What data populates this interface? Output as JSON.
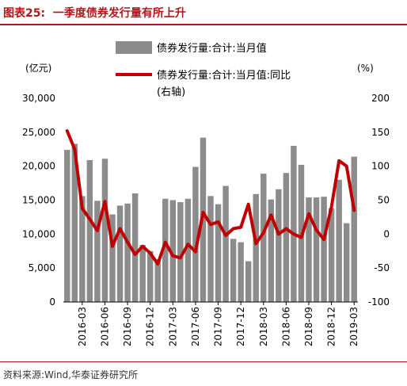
{
  "header": {
    "figure_label": "图表25:",
    "title": "一季度债券发行量有所上升"
  },
  "source": {
    "text": "资料来源:Wind,华泰证券研究所"
  },
  "colors": {
    "accent": "#b0161c",
    "bar": "#8c8c8c",
    "line": "#c00000"
  },
  "chart_data": {
    "type": "bar+line",
    "left_unit": "(亿元)",
    "right_unit": "(%)",
    "left_ylim": [
      0,
      30000
    ],
    "right_ylim": [
      -100,
      200
    ],
    "left_ticks": [
      "30,000",
      "25,000",
      "20,000",
      "15,000",
      "10,000",
      "5,000",
      "0"
    ],
    "right_ticks": [
      "200",
      "150",
      "100",
      "50",
      "0",
      "-50",
      "-100"
    ],
    "x_tick_labels": [
      "2016-03",
      "2016-06",
      "2016-09",
      "2016-12",
      "2017-03",
      "2017-06",
      "2017-09",
      "2017-12",
      "2018-03",
      "2018-06",
      "2018-09",
      "2018-12",
      "2019-03"
    ],
    "categories": [
      "2016-01",
      "2016-02",
      "2016-03",
      "2016-04",
      "2016-05",
      "2016-06",
      "2016-07",
      "2016-08",
      "2016-09",
      "2016-10",
      "2016-11",
      "2016-12",
      "2017-01",
      "2017-02",
      "2017-03",
      "2017-04",
      "2017-05",
      "2017-06",
      "2017-07",
      "2017-08",
      "2017-09",
      "2017-10",
      "2017-11",
      "2017-12",
      "2018-01",
      "2018-02",
      "2018-03",
      "2018-04",
      "2018-05",
      "2018-06",
      "2018-07",
      "2018-08",
      "2018-09",
      "2018-10",
      "2018-11",
      "2018-12",
      "2019-01",
      "2019-02",
      "2019-03"
    ],
    "series": [
      {
        "name": "债券发行量:合计:当月值",
        "axis": "left",
        "kind": "bar",
        "values": [
          22400,
          23300,
          15600,
          20900,
          14900,
          21100,
          12900,
          14200,
          14500,
          16000,
          8400,
          7500,
          6300,
          15200,
          15000,
          14700,
          15200,
          19900,
          24200,
          15600,
          14400,
          17100,
          9300,
          8800,
          6000,
          15900,
          18900,
          15100,
          16600,
          19000,
          23000,
          20200,
          15400,
          15400,
          15500,
          13800,
          18000,
          11600,
          21400
        ]
      },
      {
        "name": "债券发行量:合计:当月值:同比(右轴)",
        "axis": "right",
        "kind": "line",
        "values": [
          152,
          125,
          38,
          22,
          5,
          48,
          -18,
          8,
          -12,
          -30,
          -18,
          -28,
          -44,
          -12,
          -32,
          -35,
          -15,
          -26,
          32,
          14,
          18,
          -2,
          8,
          10,
          44,
          -14,
          2,
          28,
          0,
          8,
          0,
          -5,
          30,
          6,
          -8,
          40,
          108,
          100,
          35
        ]
      }
    ],
    "legend": {
      "position": "top-right",
      "entries": [
        "债券发行量:合计:当月值",
        "债券发行量:合计:当月值:同比",
        "(右轴)"
      ]
    },
    "grid": false
  }
}
